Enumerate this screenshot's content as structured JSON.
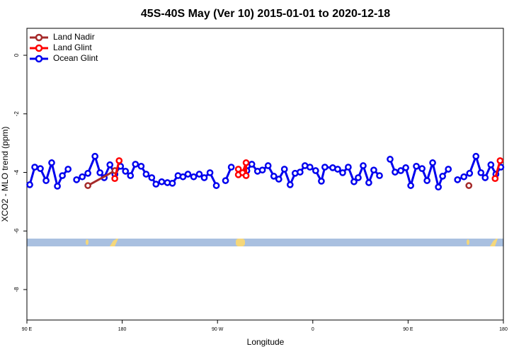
{
  "chart_data": {
    "type": "line",
    "title": "45S-40S May (Ver 10)   2015-01-01 to 2020-12-18",
    "x_label": "Longitude",
    "y_label": "XCO2 - MLO trend (ppm)",
    "xlim": [
      90,
      540
    ],
    "xticks": [
      {
        "value": 90,
        "label": "90 E"
      },
      180,
      {
        "value": 270,
        "label": "90 W"
      },
      {
        "value": 360,
        "label": "0"
      },
      {
        "value": 450,
        "label": "90 E"
      },
      {
        "value": 540,
        "label": "180"
      }
    ],
    "ylim": [
      -9.04,
      0.92
    ],
    "yticks": [
      0,
      -2,
      -4,
      -6,
      -8
    ],
    "legend": "top-left",
    "series": [
      {
        "name": "Land Nadir",
        "color": "#a52a2a",
        "x": [
          147.6,
          173.1,
          null,
          507.4
        ],
        "values": [
          -4.45,
          -3.94,
          null,
          -4.45
        ]
      },
      {
        "name": "Land Glint",
        "color": "#ff0000",
        "x": [
          173,
          177.1,
          null,
          289.7,
          289.7,
          293.7,
          297,
          297,
          null,
          532.2,
          536.9
        ],
        "values": [
          -4.21,
          -3.6,
          null,
          -4.08,
          -3.89,
          -4.01,
          -3.67,
          -4.11,
          null,
          -4.21,
          -3.6
        ]
      },
      {
        "name": "Ocean Glint",
        "color": "#0000ee",
        "x": [
          92.7,
          97.4,
          102.7,
          108.1,
          113.4,
          118.8,
          123.5,
          128.9,
          null,
          136.9,
          142.3,
          147.6,
          154.3,
          159.0,
          163.0,
          168.4,
          173.1,
          178.4,
          183.1,
          187.8,
          192.5,
          197.9,
          202.6,
          207.9,
          211.9,
          217.3,
          222.7,
          227.4,
          232.7,
          237.4,
          242.1,
          247.5,
          252.8,
          257.5,
          262.9,
          268.9,
          null,
          277.6,
          283.0,
          null,
          297.7,
          302.4,
          307.8,
          312.4,
          317.8,
          323.2,
          327.9,
          333.2,
          338.6,
          343.3,
          348.0,
          352.6,
          357.3,
          362.7,
          368.1,
          371.4,
          378.8,
          383.5,
          388.2,
          393.5,
          398.9,
          402.9,
          407.6,
          412.9,
          417.6,
          423.0,
          null,
          433.0,
          437.7,
          443.1,
          447.8,
          452.5,
          457.8,
          463.2,
          467.9,
          473.2,
          478.6,
          482.6,
          488.0,
          null,
          496.7,
          502.7,
          508.1,
          514.1,
          518.8,
          522.8,
          528.2,
          532.9,
          537.6
        ],
        "values": [
          -4.42,
          -3.82,
          -3.87,
          -4.28,
          -3.67,
          -4.47,
          -4.11,
          -3.89,
          null,
          -4.25,
          -4.15,
          -4.03,
          -3.45,
          -4.01,
          -4.18,
          -3.74,
          -4.06,
          -3.79,
          -3.96,
          -4.11,
          -3.72,
          -3.79,
          -4.06,
          -4.18,
          -4.4,
          -4.32,
          -4.35,
          -4.37,
          -4.11,
          -4.15,
          -4.06,
          -4.15,
          -4.06,
          -4.18,
          -4.01,
          -4.45,
          null,
          -4.28,
          -3.82,
          null,
          -3.94,
          -3.72,
          -3.96,
          -3.92,
          -3.77,
          -4.13,
          -4.23,
          -3.89,
          -4.42,
          -4.03,
          -3.99,
          -3.77,
          -3.82,
          -3.94,
          -4.3,
          -3.82,
          -3.84,
          -3.89,
          -4.01,
          -3.82,
          -4.32,
          -4.18,
          -3.77,
          -4.35,
          -3.92,
          -4.11,
          null,
          -3.55,
          -3.99,
          -3.94,
          -3.84,
          -4.45,
          -3.79,
          -3.87,
          -4.28,
          -3.67,
          -4.5,
          -4.13,
          -3.89,
          null,
          -4.25,
          -4.15,
          -4.03,
          -3.45,
          -4.01,
          -4.18,
          -3.74,
          -4.06,
          -3.82
        ]
      }
    ]
  }
}
